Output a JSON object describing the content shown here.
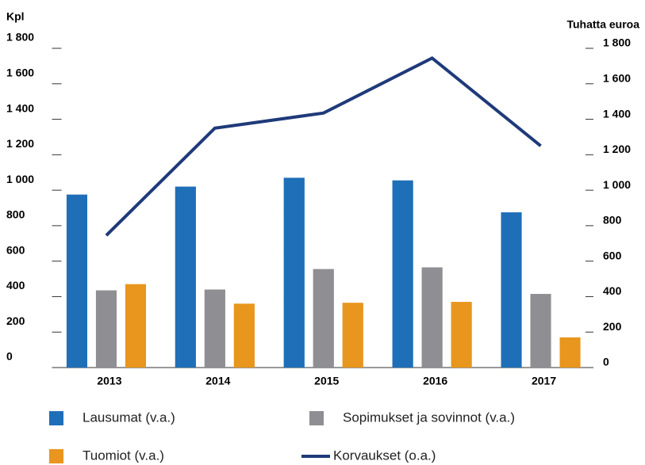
{
  "chart_data": {
    "type": "bar",
    "y_label": "Kpl",
    "y2_label": "Tuhatta euroa",
    "categories": [
      "2013",
      "2014",
      "2015",
      "2016",
      "2017"
    ],
    "series": [
      {
        "name": "Lausumat (v.a.)",
        "color": "#1f6fb8",
        "type": "bar",
        "values": [
          975,
          1020,
          1070,
          1055,
          875
        ]
      },
      {
        "name": "Sopimukset ja sovinnot (v.a.)",
        "color": "#8e8e93",
        "type": "bar",
        "values": [
          435,
          440,
          555,
          565,
          415
        ]
      },
      {
        "name": "Tuomiot (v.a.)",
        "color": "#e8961e",
        "type": "bar",
        "values": [
          470,
          360,
          365,
          370,
          170
        ]
      },
      {
        "name": "Korvaukset (o.a.)",
        "color": "#1f3a7a",
        "type": "line",
        "axis": "y2",
        "values": [
          745,
          1350,
          1435,
          1745,
          1250
        ]
      }
    ],
    "ylim": [
      0,
      1800
    ],
    "yticks": [
      0,
      200,
      400,
      600,
      800,
      {
        "value": 1000,
        "label": "1 000"
      },
      {
        "value": 1200,
        "label": "1 200"
      },
      {
        "value": 1400,
        "label": "1 400"
      },
      {
        "value": 1600,
        "label": "1 600"
      },
      {
        "value": 1800,
        "label": "1 800"
      }
    ],
    "y2lim": [
      0,
      1800
    ],
    "y2ticks": [
      0,
      200,
      400,
      600,
      800,
      {
        "value": 1000,
        "label": "1 000"
      },
      {
        "value": 1200,
        "label": "1 200"
      },
      {
        "value": 1400,
        "label": "1 400"
      },
      {
        "value": 1600,
        "label": "1 600"
      },
      {
        "value": 1800,
        "label": "1 800"
      }
    ]
  }
}
